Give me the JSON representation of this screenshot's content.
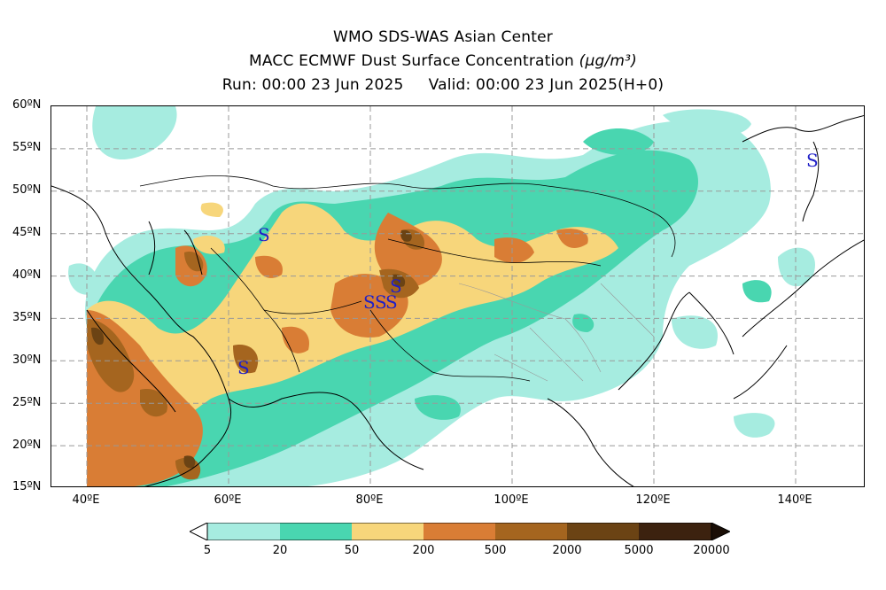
{
  "title": {
    "line1": "WMO SDS-WAS Asian Center",
    "line2_text": "MACC ECMWF Dust Surface Concentration ",
    "line2_unit": "(µg/m³)",
    "run": "Run: 00:00 23 Jun 2025",
    "valid": "Valid: 00:00 23 Jun 2025(H+0)"
  },
  "map": {
    "lon_range": [
      35,
      150
    ],
    "lat_range": [
      15,
      60
    ],
    "lat_ticks": [
      "60ºN",
      "55ºN",
      "50ºN",
      "45ºN",
      "40ºN",
      "35ºN",
      "30ºN",
      "25ºN",
      "20ºN",
      "15ºN"
    ],
    "lon_ticks": [
      "40ºE",
      "60ºE",
      "80ºE",
      "100ºE",
      "120ºE",
      "140ºE"
    ],
    "marker_symbol": "S",
    "grid": "dashed"
  },
  "colorbar": {
    "levels": [
      "5",
      "20",
      "50",
      "200",
      "500",
      "2000",
      "5000",
      "20000"
    ],
    "colors": [
      "#a6ece0",
      "#49d6b0",
      "#f7d67b",
      "#d97d35",
      "#a5651f",
      "#6b4314",
      "#3c220f"
    ]
  }
}
